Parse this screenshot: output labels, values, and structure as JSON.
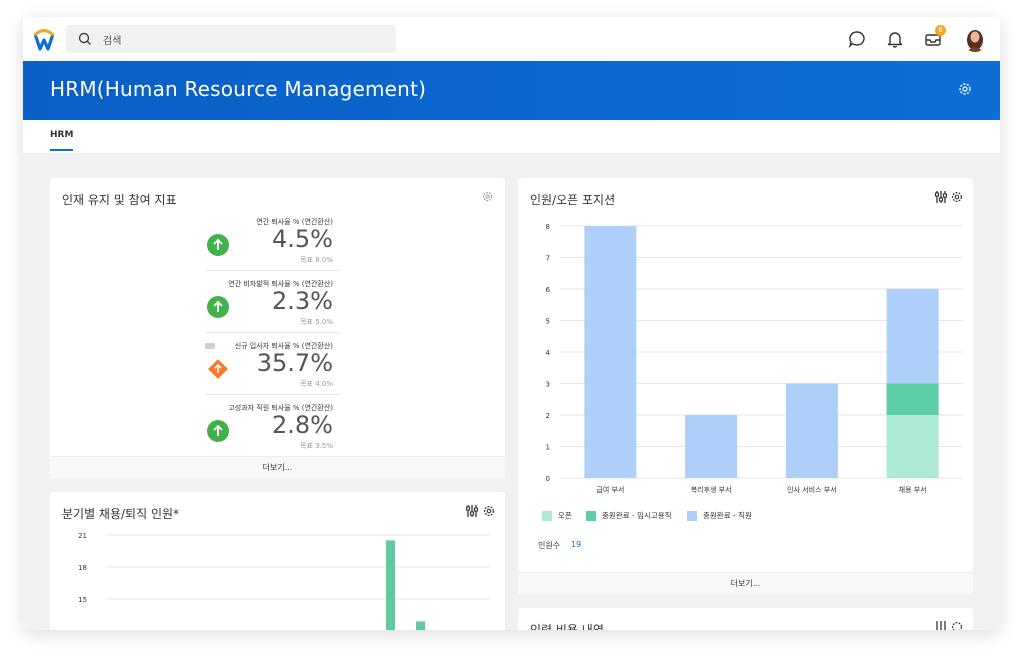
{
  "search": {
    "placeholder": "검색"
  },
  "notifications": {
    "inbox_count": "8"
  },
  "header": {
    "title": "HRM(Human Resource Management)"
  },
  "tabs": [
    {
      "label": "HRM"
    }
  ],
  "retention_card": {
    "title": "인재 유지 및 참여 지표",
    "more_label": "더보기...",
    "metrics": [
      {
        "label": "연간 퇴사율 % (연간환산)",
        "value": "4.5%",
        "goal": "목표 8.0%",
        "status": "up-green"
      },
      {
        "label": "연간 비자발적 퇴사율 % (연간환산)",
        "value": "2.3%",
        "goal": "목표 5.0%",
        "status": "up-green"
      },
      {
        "label": "신규 입사자 퇴사율 % (연간환산)",
        "value": "35.7%",
        "goal": "목표 4.0%",
        "status": "up-orange"
      },
      {
        "label": "고성과자 직원 퇴사율 % (연간환산)",
        "value": "2.8%",
        "goal": "목표 3.5%",
        "status": "up-green"
      }
    ]
  },
  "hiring_card": {
    "title": "분기별 채용/퇴직 인원*",
    "chart_data": {
      "type": "bar",
      "y_ticks": [
        "21",
        "18",
        "15"
      ],
      "ylim": [
        12,
        21
      ],
      "series": [
        {
          "color": "#5fc9a0",
          "values": [
            20.5,
            12.9
          ]
        }
      ]
    }
  },
  "positions_card": {
    "title": "인원/오픈 포지션",
    "more_label": "더보기...",
    "headcount_label": "인원수",
    "headcount_value": "19",
    "legend": [
      {
        "label": "오픈",
        "color": "#aee9d8"
      },
      {
        "label": "충원완료 - 임시고용직",
        "color": "#5ccfa6"
      },
      {
        "label": "충원완료 - 직원",
        "color": "#aecffa"
      }
    ],
    "chart_data": {
      "type": "bar",
      "stacked": true,
      "categories": [
        "급여 부서",
        "복리후생 부서",
        "인사 서비스 부서",
        "채용 부서"
      ],
      "series": [
        {
          "name": "오픈",
          "values": [
            0,
            0,
            0,
            2
          ]
        },
        {
          "name": "충원완료 - 임시고용직",
          "values": [
            0,
            0,
            0,
            1
          ]
        },
        {
          "name": "충원완료 - 직원",
          "values": [
            8,
            2,
            3,
            3
          ]
        }
      ],
      "y_ticks": [
        "0",
        "1",
        "2",
        "3",
        "4",
        "5",
        "6",
        "7",
        "8"
      ],
      "ylim": [
        0,
        8
      ]
    }
  },
  "cost_card": {
    "title": "인력 비용 내역"
  }
}
